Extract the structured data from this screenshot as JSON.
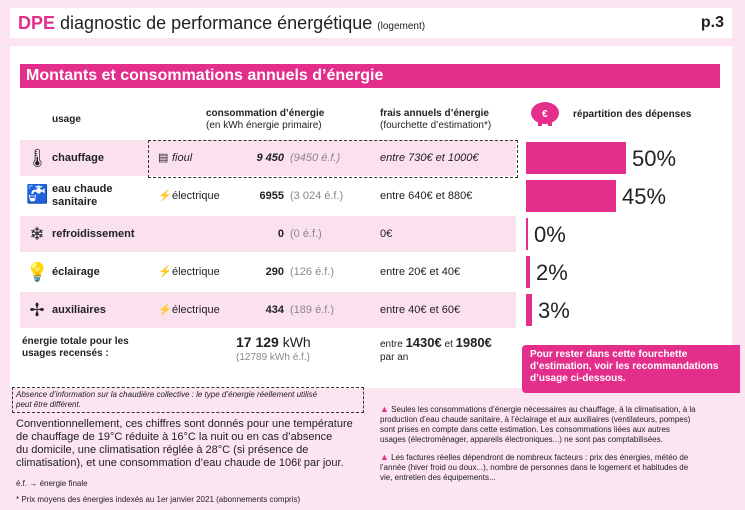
{
  "header": {
    "dpe": "DPE",
    "title": "diagnostic de performance énergétique",
    "subtitle": "(logement)",
    "page": "p.3"
  },
  "section_title": "Montants et consommations annuels d’énergie",
  "columns": {
    "usage": "usage",
    "consumption_l1": "consommation d’énergie",
    "consumption_l2": "(en kWh énergie primaire)",
    "cost_l1": "frais annuels d’énergie",
    "cost_l2": "(fourchette d’estimation*)",
    "split": "répartition des dépenses"
  },
  "rows": [
    {
      "icon": "thermometer-icon",
      "label": "chauffage",
      "energy": "fioul",
      "value": "9 450",
      "ef": "(9450 é.f.)",
      "cost": "entre 730€ et 1000€",
      "pct_label": "50%",
      "pct": 50
    },
    {
      "icon": "faucet-icon",
      "label": "eau chaude sanitaire",
      "label_l1": "eau chaude",
      "label_l2": "sanitaire",
      "energy": "électrique",
      "value": "6955",
      "ef": "(3 024 é.f.)",
      "cost": "entre 640€ et 880€",
      "pct_label": "45%",
      "pct": 45
    },
    {
      "icon": "snowflake-icon",
      "label": "refroidissement",
      "energy": "",
      "value": "0",
      "ef": "(0 é.f.)",
      "cost": "0€",
      "pct_label": "0%",
      "pct": 0
    },
    {
      "icon": "lightbulb-icon",
      "label": "éclairage",
      "energy": "électrique",
      "value": "290",
      "ef": "(126 é.f.)",
      "cost": "entre 20€ et 40€",
      "pct_label": "2%",
      "pct": 2
    },
    {
      "icon": "fan-icon",
      "label": "auxiliaires",
      "energy": "électrique",
      "value": "434",
      "ef": "(189 é.f.)",
      "cost": "entre 40€ et 60€",
      "pct_label": "3%",
      "pct": 3
    }
  ],
  "total": {
    "label_l1": "énergie totale pour les",
    "label_l2": "usages recensés :",
    "value": "17 129",
    "unit": "kWh",
    "ef": "(12789 kWh é.f.)",
    "cost_prefix": "entre",
    "cost_low": "1430€",
    "cost_mid": "et",
    "cost_high": "1980€",
    "cost_suffix": "par an"
  },
  "callout": "Pour rester dans cette fourchette d’estimation, voir les recommandations d’usage ci-dessous.",
  "notes": {
    "collective_l1": "Absence d’information sur la chaudière collective : le type d’énergie réellement utilisé",
    "collective_l2": "peut être différent.",
    "conventional_l1": "Conventionnellement, ces chiffres sont donnés pour une température",
    "conventional_l2": "de chauffage de 19°C réduite à 16°C la nuit ou en cas d’absence",
    "conventional_l3": "du domicile, une climatisation réglée à 28°C (si présence de",
    "conventional_l4": "climatisation), et une consommation d’eau chaude de 106ℓ par jour.",
    "ef": "é.f. → énergie finale",
    "prices": "* Prix moyens des énergies indexés au 1er janvier 2021 (abonnements compris)",
    "right1_l1": "Seules les consommations d’énergie nécessaires au chauffage, à la climatisation, à la",
    "right1_l2": "production d’eau chaude sanitaire, à l’éclairage et aux auxiliaires (ventilateurs, pompes)",
    "right1_l3": "sont prises en compte dans cette estimation.  Les consommations liées aux autres",
    "right1_l4": "usages (électroménager, appareils électroniques...) ne sont pas comptabilisées.",
    "right2_l1": "Les factures réelles dépendront de nombreux facteurs : prix des énergies, météo de",
    "right2_l2": "l’année (hiver froid ou doux...), nombre de personnes dans le logement et habitudes de",
    "right2_l3": "vie, entretien des équipements..."
  },
  "colors": {
    "accent": "#e32f8b",
    "bg": "#fce4f0"
  }
}
